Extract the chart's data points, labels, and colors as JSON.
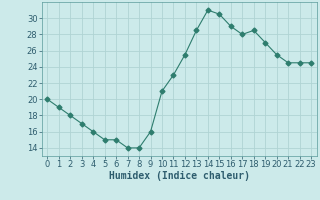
{
  "x": [
    0,
    1,
    2,
    3,
    4,
    5,
    6,
    7,
    8,
    9,
    10,
    11,
    12,
    13,
    14,
    15,
    16,
    17,
    18,
    19,
    20,
    21,
    22,
    23
  ],
  "y": [
    20,
    19,
    18,
    17,
    16,
    15,
    15,
    14,
    14,
    16,
    21,
    23,
    25.5,
    28.5,
    31,
    30.5,
    29,
    28,
    28.5,
    27,
    25.5,
    24.5,
    24.5,
    24.5
  ],
  "line_color": "#2e7d6e",
  "marker": "D",
  "marker_size": 2.5,
  "bg_color": "#cceaea",
  "grid_color": "#b0d4d4",
  "xlabel": "Humidex (Indice chaleur)",
  "xlabel_fontsize": 7,
  "tick_fontsize": 6,
  "ylim": [
    13,
    32
  ],
  "xlim": [
    -0.5,
    23.5
  ],
  "yticks": [
    14,
    16,
    18,
    20,
    22,
    24,
    26,
    28,
    30
  ],
  "xticks": [
    0,
    1,
    2,
    3,
    4,
    5,
    6,
    7,
    8,
    9,
    10,
    11,
    12,
    13,
    14,
    15,
    16,
    17,
    18,
    19,
    20,
    21,
    22,
    23
  ]
}
